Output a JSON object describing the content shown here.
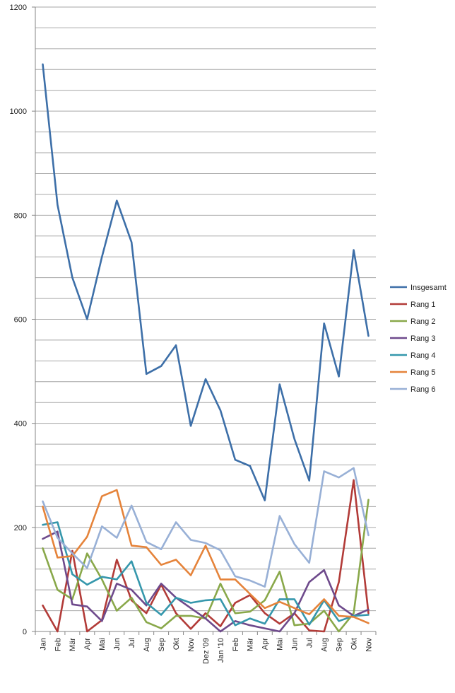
{
  "chart_data": {
    "type": "line",
    "title": "",
    "xlabel": "",
    "ylabel": "",
    "ylim": [
      0,
      1200
    ],
    "ytick_step": 200,
    "minor_grid_step": 40,
    "grid": true,
    "legend_position": "right",
    "categories": [
      "Jan",
      "Feb",
      "Mär",
      "Apr",
      "Mai",
      "Jun",
      "Jul",
      "Aug",
      "Sep",
      "Okt",
      "Nov",
      "Dez '09",
      "Jan '10",
      "Feb",
      "Mär",
      "Apr",
      "Mai",
      "Jun",
      "Jul",
      "Aug",
      "Sep",
      "Okt",
      "Nov"
    ],
    "series": [
      {
        "name": "Insgesamt",
        "color": "#3D6FA8",
        "values": [
          1090,
          820,
          680,
          600,
          720,
          828,
          748,
          495,
          510,
          550,
          395,
          485,
          425,
          330,
          318,
          252,
          475,
          370,
          290,
          592,
          490,
          733,
          568
        ]
      },
      {
        "name": "Rang 1",
        "color": "#B23B38",
        "values": [
          50,
          0,
          155,
          0,
          22,
          138,
          60,
          35,
          90,
          35,
          5,
          35,
          10,
          55,
          70,
          35,
          15,
          35,
          2,
          0,
          95,
          291,
          35
        ]
      },
      {
        "name": "Rang 2",
        "color": "#89A84A",
        "values": [
          160,
          80,
          62,
          150,
          100,
          40,
          65,
          18,
          6,
          30,
          30,
          25,
          92,
          35,
          38,
          60,
          115,
          12,
          15,
          40,
          0,
          35,
          253
        ]
      },
      {
        "name": "Rang 3",
        "color": "#6E4A8C",
        "values": [
          178,
          192,
          52,
          48,
          20,
          92,
          80,
          50,
          92,
          65,
          45,
          25,
          0,
          20,
          12,
          6,
          0,
          35,
          95,
          118,
          50,
          30,
          42
        ]
      },
      {
        "name": "Rang 4",
        "color": "#3597AC",
        "values": [
          205,
          210,
          110,
          90,
          105,
          100,
          135,
          55,
          32,
          65,
          55,
          60,
          62,
          12,
          25,
          15,
          62,
          62,
          13,
          60,
          20,
          30,
          32
        ]
      },
      {
        "name": "Rang 5",
        "color": "#E5833A",
        "values": [
          240,
          142,
          145,
          182,
          260,
          272,
          165,
          162,
          128,
          138,
          108,
          165,
          100,
          100,
          72,
          45,
          57,
          45,
          33,
          62,
          30,
          28,
          16
        ]
      },
      {
        "name": "Rang 6",
        "color": "#98B0D6",
        "values": [
          250,
          180,
          150,
          122,
          202,
          180,
          242,
          172,
          158,
          210,
          176,
          170,
          156,
          106,
          98,
          86,
          222,
          168,
          132,
          308,
          296,
          314,
          185
        ]
      }
    ]
  }
}
